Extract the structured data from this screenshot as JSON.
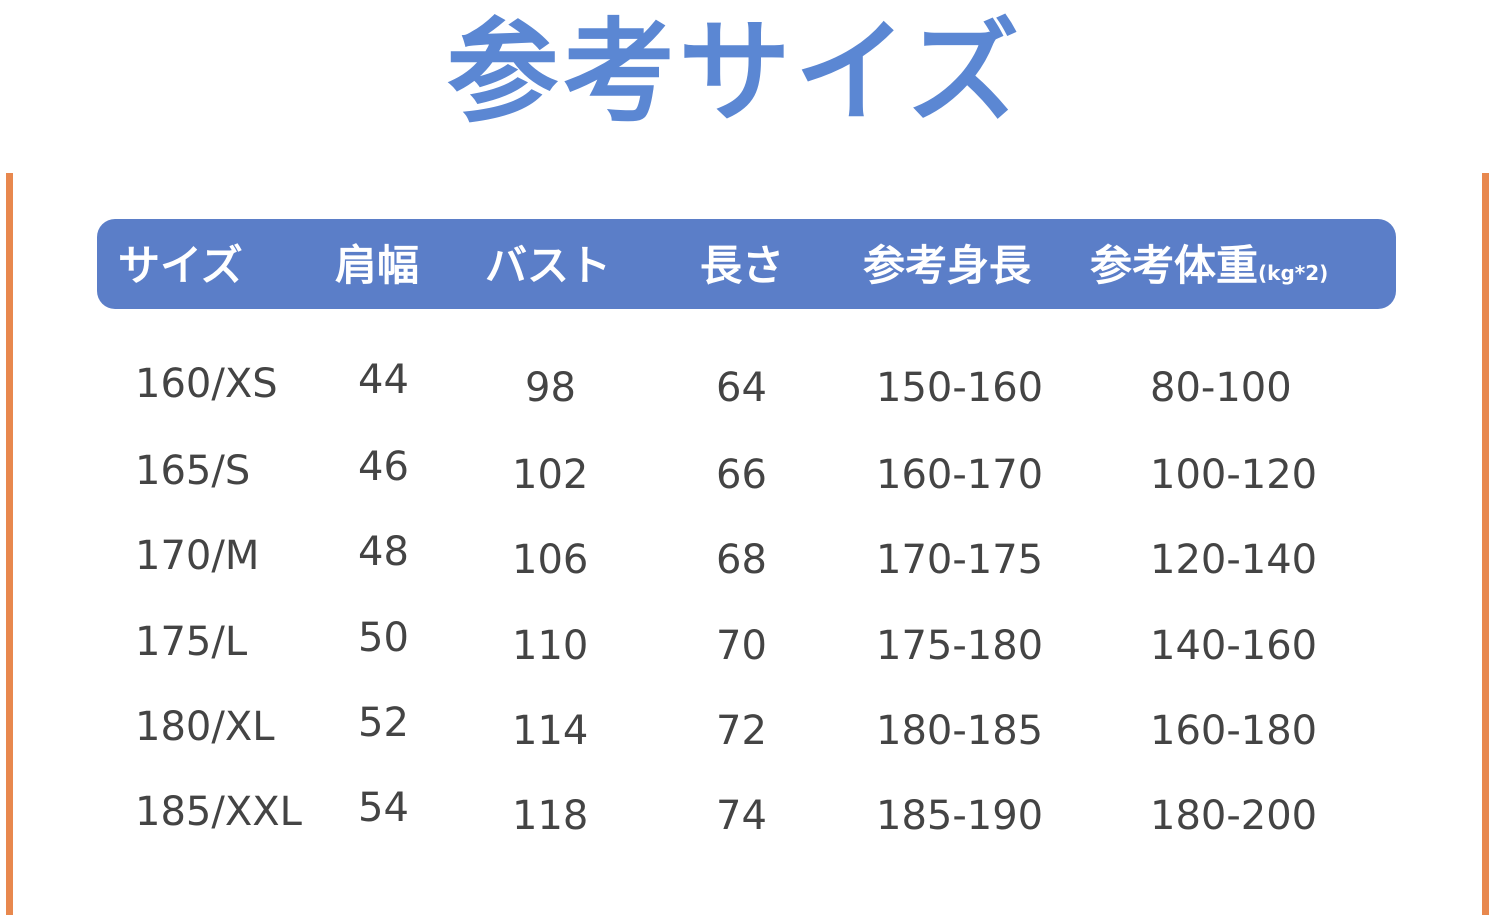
{
  "title": "参考サイズ",
  "colors": {
    "title": "#5b87d3",
    "header_bg": "#5b7ec8",
    "side_bars": "#e8884e",
    "text": "#444444"
  },
  "table": {
    "headers": [
      "サイズ",
      "肩幅",
      "バスト",
      "長さ",
      "参考身長",
      "参考体重"
    ],
    "weight_unit": "(kg*2)",
    "rows": [
      [
        "160/XS",
        "44",
        "98",
        "64",
        "150-160",
        "80-100"
      ],
      [
        "165/S",
        "46",
        "102",
        "66",
        "160-170",
        "100-120"
      ],
      [
        "170/M",
        "48",
        "106",
        "68",
        "170-175",
        "120-140"
      ],
      [
        "175/L",
        "50",
        "110",
        "70",
        "175-180",
        "140-160"
      ],
      [
        "180/XL",
        "52",
        "114",
        "72",
        "180-185",
        "160-180"
      ],
      [
        "185/XXL",
        "54",
        "118",
        "74",
        "185-190",
        "180-200"
      ]
    ]
  }
}
